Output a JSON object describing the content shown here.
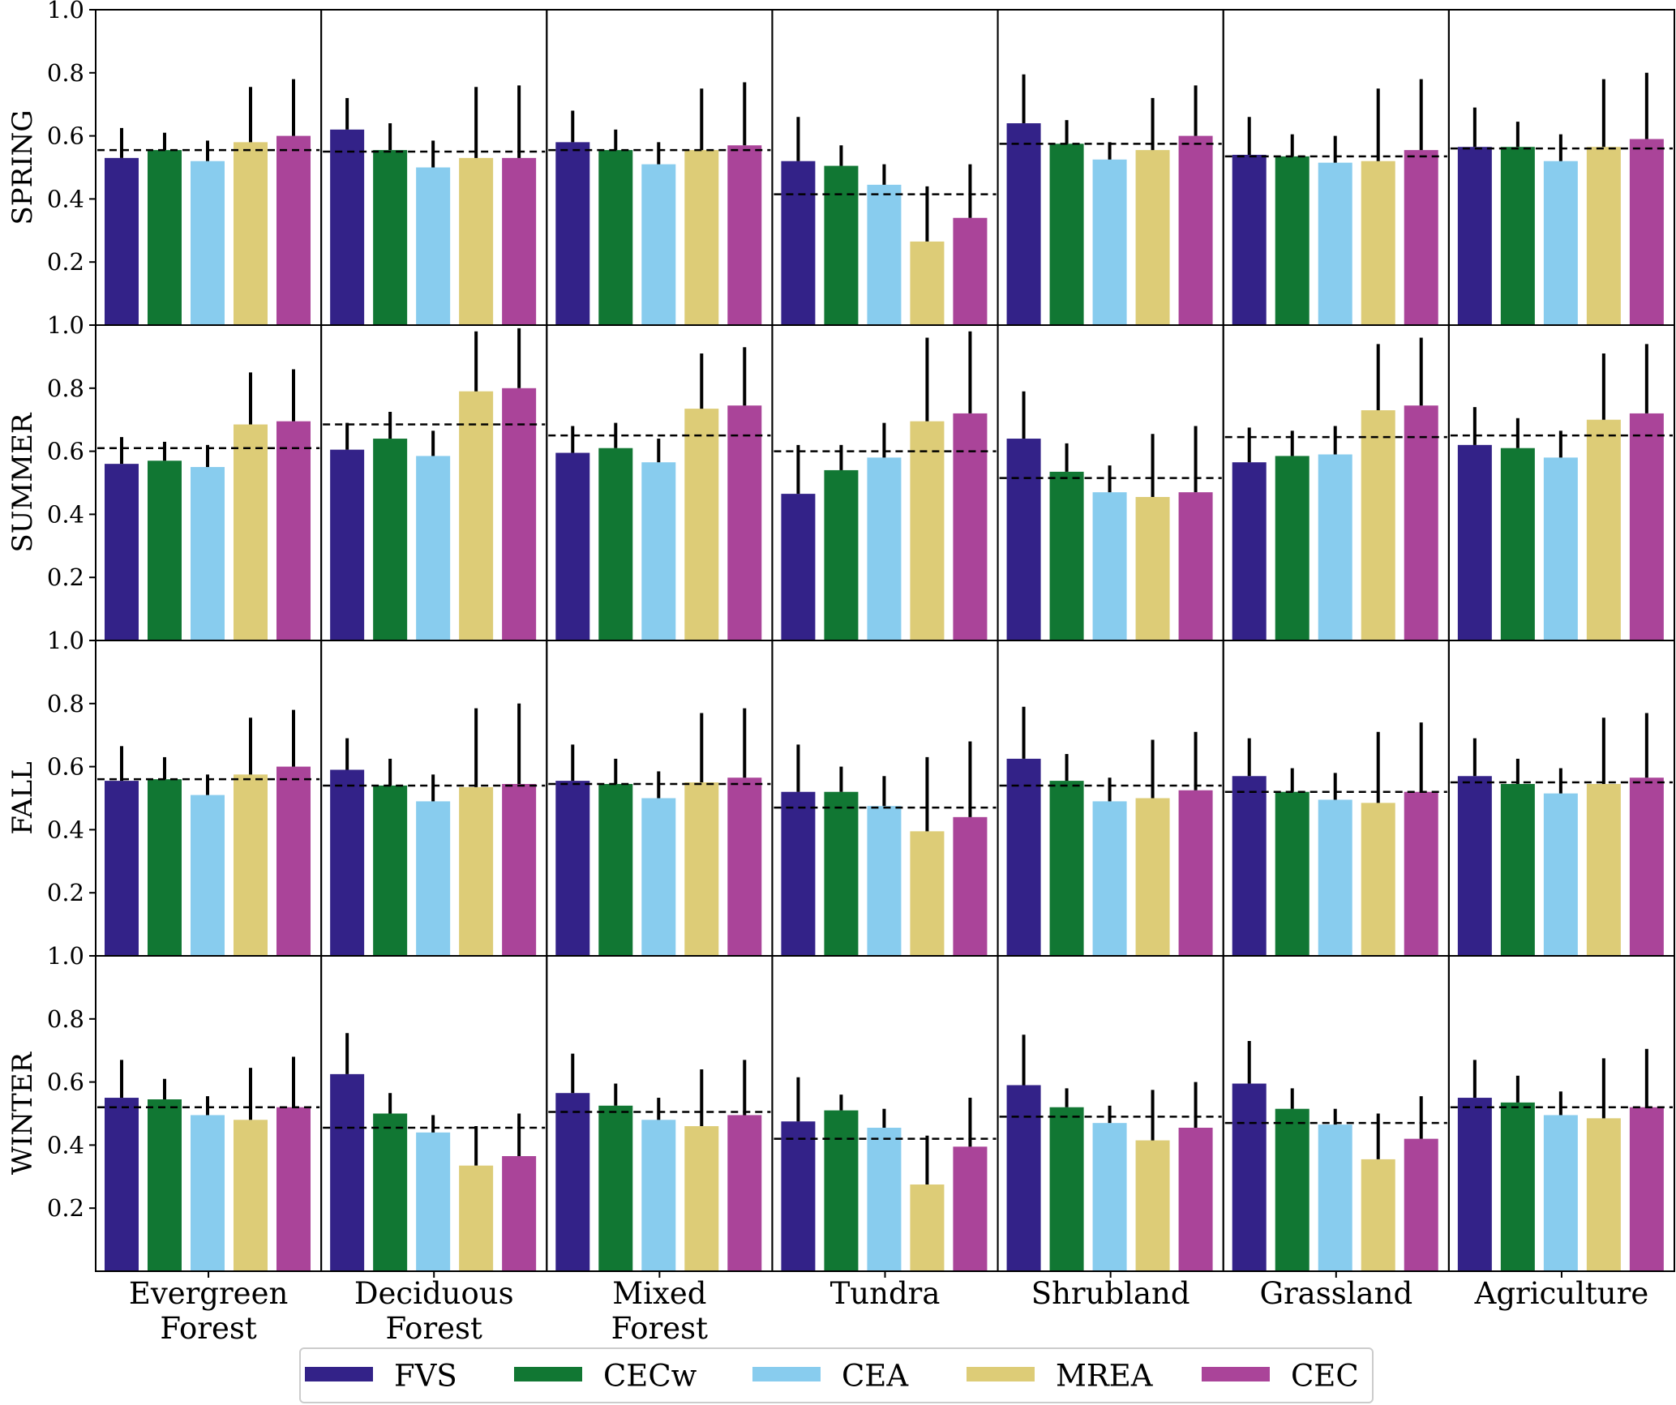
{
  "chart_data": {
    "type": "bar",
    "layout": "grid",
    "rows": [
      "SPRING",
      "SUMMER",
      "FALL",
      "WINTER"
    ],
    "categories": [
      [
        "Evergreen",
        "Forest"
      ],
      [
        "Deciduous",
        "Forest"
      ],
      [
        "Mixed",
        "Forest"
      ],
      [
        "Tundra"
      ],
      [
        "Shrubland"
      ],
      [
        "Grassland"
      ],
      [
        "Agriculture"
      ]
    ],
    "series": [
      {
        "name": "FVS",
        "color": "#332288"
      },
      {
        "name": "CECw",
        "color": "#117733"
      },
      {
        "name": "CEA",
        "color": "#88CCEE"
      },
      {
        "name": "MREA",
        "color": "#DDCC77"
      },
      {
        "name": "CEC",
        "color": "#AA4499"
      }
    ],
    "yticks": [
      "0.2",
      "0.4",
      "0.6",
      "0.8",
      "1.0"
    ],
    "ylim": [
      0,
      1.0
    ],
    "grid": false,
    "legend": "bottom-center",
    "error_bars": "upper only",
    "reference_line": "dashed mean",
    "values": {
      "SPRING": [
        [
          0.53,
          0.555,
          0.52,
          0.58,
          0.6
        ],
        [
          0.62,
          0.555,
          0.5,
          0.53,
          0.53
        ],
        [
          0.58,
          0.555,
          0.51,
          0.555,
          0.57
        ],
        [
          0.52,
          0.505,
          0.445,
          0.265,
          0.34
        ],
        [
          0.64,
          0.575,
          0.525,
          0.555,
          0.6
        ],
        [
          0.54,
          0.535,
          0.515,
          0.52,
          0.555
        ],
        [
          0.565,
          0.565,
          0.52,
          0.565,
          0.59
        ]
      ],
      "SUMMER": [
        [
          0.56,
          0.57,
          0.55,
          0.685,
          0.695
        ],
        [
          0.605,
          0.64,
          0.585,
          0.79,
          0.8
        ],
        [
          0.595,
          0.61,
          0.565,
          0.735,
          0.745
        ],
        [
          0.465,
          0.54,
          0.58,
          0.695,
          0.72
        ],
        [
          0.64,
          0.535,
          0.47,
          0.455,
          0.47
        ],
        [
          0.565,
          0.585,
          0.59,
          0.73,
          0.745
        ],
        [
          0.62,
          0.61,
          0.58,
          0.7,
          0.72
        ]
      ],
      "FALL": [
        [
          0.555,
          0.56,
          0.51,
          0.575,
          0.6
        ],
        [
          0.59,
          0.54,
          0.49,
          0.535,
          0.545
        ],
        [
          0.555,
          0.545,
          0.5,
          0.55,
          0.565
        ],
        [
          0.52,
          0.52,
          0.475,
          0.395,
          0.44
        ],
        [
          0.625,
          0.555,
          0.49,
          0.5,
          0.525
        ],
        [
          0.57,
          0.52,
          0.495,
          0.485,
          0.52
        ],
        [
          0.57,
          0.545,
          0.515,
          0.545,
          0.565
        ]
      ],
      "WINTER": [
        [
          0.55,
          0.545,
          0.495,
          0.48,
          0.52
        ],
        [
          0.625,
          0.5,
          0.44,
          0.335,
          0.365
        ],
        [
          0.565,
          0.525,
          0.48,
          0.46,
          0.495
        ],
        [
          0.475,
          0.51,
          0.455,
          0.275,
          0.395
        ],
        [
          0.59,
          0.52,
          0.47,
          0.415,
          0.455
        ],
        [
          0.595,
          0.515,
          0.465,
          0.355,
          0.42
        ],
        [
          0.55,
          0.535,
          0.495,
          0.485,
          0.52
        ]
      ]
    },
    "error_tops": {
      "SPRING": [
        [
          0.625,
          0.61,
          0.585,
          0.755,
          0.78
        ],
        [
          0.72,
          0.64,
          0.585,
          0.755,
          0.76
        ],
        [
          0.68,
          0.62,
          0.58,
          0.75,
          0.77
        ],
        [
          0.66,
          0.57,
          0.51,
          0.44,
          0.51
        ],
        [
          0.795,
          0.65,
          0.58,
          0.72,
          0.76
        ],
        [
          0.66,
          0.605,
          0.6,
          0.75,
          0.78
        ],
        [
          0.69,
          0.645,
          0.605,
          0.78,
          0.8
        ]
      ],
      "SUMMER": [
        [
          0.645,
          0.63,
          0.62,
          0.85,
          0.86
        ],
        [
          0.69,
          0.725,
          0.665,
          0.98,
          0.99
        ],
        [
          0.68,
          0.69,
          0.64,
          0.91,
          0.93
        ],
        [
          0.62,
          0.62,
          0.69,
          0.96,
          0.98
        ],
        [
          0.79,
          0.625,
          0.555,
          0.655,
          0.68
        ],
        [
          0.675,
          0.665,
          0.68,
          0.94,
          0.96
        ],
        [
          0.74,
          0.705,
          0.665,
          0.91,
          0.94
        ]
      ],
      "FALL": [
        [
          0.665,
          0.63,
          0.575,
          0.755,
          0.78
        ],
        [
          0.69,
          0.625,
          0.575,
          0.785,
          0.8
        ],
        [
          0.67,
          0.625,
          0.585,
          0.77,
          0.785
        ],
        [
          0.67,
          0.6,
          0.57,
          0.63,
          0.68
        ],
        [
          0.79,
          0.64,
          0.565,
          0.685,
          0.71
        ],
        [
          0.69,
          0.595,
          0.58,
          0.71,
          0.74
        ],
        [
          0.69,
          0.625,
          0.595,
          0.755,
          0.77
        ]
      ],
      "WINTER": [
        [
          0.67,
          0.61,
          0.555,
          0.645,
          0.68
        ],
        [
          0.755,
          0.565,
          0.495,
          0.46,
          0.5
        ],
        [
          0.69,
          0.595,
          0.55,
          0.64,
          0.67
        ],
        [
          0.615,
          0.56,
          0.515,
          0.43,
          0.55
        ],
        [
          0.75,
          0.58,
          0.525,
          0.575,
          0.6
        ],
        [
          0.73,
          0.58,
          0.515,
          0.5,
          0.555
        ],
        [
          0.67,
          0.62,
          0.57,
          0.675,
          0.705
        ]
      ]
    },
    "mean_lines": {
      "SPRING": [
        0.555,
        0.55,
        0.555,
        0.415,
        0.575,
        0.535,
        0.56
      ],
      "SUMMER": [
        0.61,
        0.685,
        0.65,
        0.6,
        0.515,
        0.645,
        0.65
      ],
      "FALL": [
        0.56,
        0.54,
        0.545,
        0.47,
        0.54,
        0.52,
        0.55
      ],
      "WINTER": [
        0.52,
        0.455,
        0.505,
        0.42,
        0.49,
        0.47,
        0.52
      ]
    }
  }
}
